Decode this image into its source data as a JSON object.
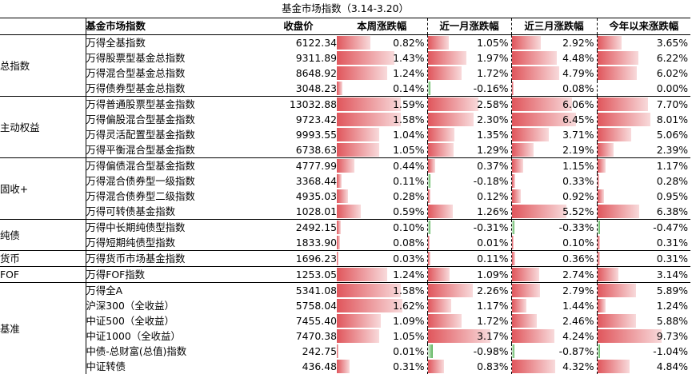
{
  "title": "基金市场指数（3.14-3.20）",
  "headers": {
    "name": "基金市场指数",
    "close": "收盘价",
    "week": "本周涨跌幅",
    "month": "近一月涨跌幅",
    "three_month": "近三月涨跌幅",
    "ytd": "今年以来涨跌幅"
  },
  "colors": {
    "positive": "#e0565c",
    "negative": "#5bb45b"
  },
  "groups": [
    {
      "label": "总指数",
      "rows": [
        {
          "name": "万得全基指数",
          "close": "6122.34",
          "week": "0.82%",
          "month": "1.05%",
          "three_month": "2.92%",
          "ytd": "3.65%"
        },
        {
          "name": "万得股票型基金总指数",
          "close": "9311.89",
          "week": "1.43%",
          "month": "1.97%",
          "three_month": "4.48%",
          "ytd": "6.22%"
        },
        {
          "name": "万得混合型基金总指数",
          "close": "8648.92",
          "week": "1.24%",
          "month": "1.72%",
          "three_month": "4.79%",
          "ytd": "6.02%"
        },
        {
          "name": "万得债券型基金总指数",
          "close": "3048.23",
          "week": "0.14%",
          "month": "-0.16%",
          "three_month": "0.08%",
          "ytd": "0.00%"
        }
      ]
    },
    {
      "label": "主动权益",
      "rows": [
        {
          "name": "万得普通股票型基金指数",
          "close": "13032.88",
          "week": "1.59%",
          "month": "2.58%",
          "three_month": "6.06%",
          "ytd": "7.70%"
        },
        {
          "name": "万得偏股混合型基金指数",
          "close": "9723.42",
          "week": "1.58%",
          "month": "2.30%",
          "three_month": "6.45%",
          "ytd": "8.01%"
        },
        {
          "name": "万得灵活配置型基金指数",
          "close": "9993.55",
          "week": "1.04%",
          "month": "1.35%",
          "three_month": "3.71%",
          "ytd": "5.06%"
        },
        {
          "name": "万得平衡混合型基金指数",
          "close": "6738.63",
          "week": "1.05%",
          "month": "1.29%",
          "three_month": "2.19%",
          "ytd": "2.39%"
        }
      ]
    },
    {
      "label": "固收+",
      "rows": [
        {
          "name": "万得偏债混合型基金指数",
          "close": "4777.99",
          "week": "0.44%",
          "month": "0.37%",
          "three_month": "1.15%",
          "ytd": "1.17%"
        },
        {
          "name": "万得混合债券型一级指数",
          "close": "3368.44",
          "week": "0.11%",
          "month": "-0.18%",
          "three_month": "0.33%",
          "ytd": "0.28%"
        },
        {
          "name": "万得混合债券型二级指数",
          "close": "4935.03",
          "week": "0.28%",
          "month": "0.12%",
          "three_month": "0.92%",
          "ytd": "0.95%"
        },
        {
          "name": "万得可转债基金指数",
          "close": "1028.01",
          "week": "0.59%",
          "month": "1.26%",
          "three_month": "5.52%",
          "ytd": "6.38%"
        }
      ]
    },
    {
      "label": "纯债",
      "rows": [
        {
          "name": "万得中长期纯债型指数",
          "close": "2492.15",
          "week": "0.10%",
          "month": "-0.31%",
          "three_month": "-0.33%",
          "ytd": "-0.47%"
        },
        {
          "name": "万得短期纯债型指数",
          "close": "1833.90",
          "week": "0.08%",
          "month": "0.01%",
          "three_month": "0.10%",
          "ytd": "0.31%"
        }
      ]
    },
    {
      "label": "货币",
      "rows": [
        {
          "name": "万得货币市场基金指数",
          "close": "1696.23",
          "week": "0.03%",
          "month": "0.11%",
          "three_month": "0.36%",
          "ytd": "0.31%"
        }
      ]
    },
    {
      "label": "FOF",
      "rows": [
        {
          "name": "万得FOF指数",
          "close": "1253.05",
          "week": "1.24%",
          "month": "1.09%",
          "three_month": "2.74%",
          "ytd": "3.14%"
        }
      ]
    },
    {
      "label": "基准",
      "rows": [
        {
          "name": "万得全A",
          "close": "5341.08",
          "week": "1.58%",
          "month": "2.26%",
          "three_month": "2.79%",
          "ytd": "5.89%"
        },
        {
          "name": "沪深300（全收益）",
          "close": "5758.04",
          "week": "1.62%",
          "month": "1.17%",
          "three_month": "1.44%",
          "ytd": "1.24%"
        },
        {
          "name": "中证500（全收益）",
          "close": "7455.40",
          "week": "1.09%",
          "month": "1.72%",
          "three_month": "2.46%",
          "ytd": "5.88%"
        },
        {
          "name": "中证1000（全收益）",
          "close": "7470.38",
          "week": "1.05%",
          "month": "3.17%",
          "three_month": "4.24%",
          "ytd": "9.73%"
        },
        {
          "name": "中债-总财富(总值)指数",
          "close": "242.75",
          "week": "0.01%",
          "month": "-0.98%",
          "three_month": "-0.87%",
          "ytd": "-1.04%"
        },
        {
          "name": "中证转债",
          "close": "436.48",
          "week": "0.31%",
          "month": "0.83%",
          "three_month": "4.32%",
          "ytd": "4.84%"
        }
      ]
    }
  ]
}
